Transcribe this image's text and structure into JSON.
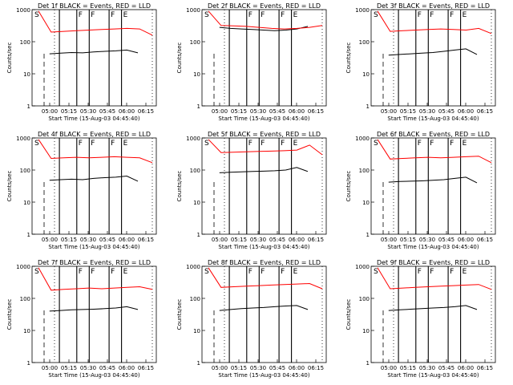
{
  "colors": {
    "events": "#000000",
    "lld": "#ff0000",
    "axes": "#000000"
  },
  "chart_data": [
    {
      "type": "line",
      "title": "Det 1f BLACK = Events, RED = LLD",
      "xlabel": "Start Time (15-Aug-03 04:45:40)",
      "ylabel": "Counts/sec",
      "x_ticks": [
        "05:00",
        "05:15",
        "05:30",
        "05:45",
        "06:00",
        "06:15"
      ],
      "y_ticks": [
        "1",
        "10",
        "100",
        "1000"
      ],
      "y_scale": "log",
      "ylim": [
        1,
        1000
      ],
      "flags": [
        "S",
        "F",
        "F",
        "F",
        "E"
      ],
      "series": [
        {
          "name": "BLACK = Events",
          "values": [
            40,
            42,
            44,
            46,
            45,
            48,
            50,
            52,
            55,
            45
          ]
        },
        {
          "name": "RED = LLD",
          "values": [
            900,
            200,
            210,
            220,
            230,
            240,
            250,
            260,
            250,
            160
          ]
        }
      ]
    },
    {
      "type": "line",
      "title": "Det 2f BLACK = Events, RED = LLD",
      "xlabel": "Start Time (15-Aug-03 04:45:40)",
      "ylabel": "Counts/sec",
      "x_ticks": [
        "05:00",
        "05:15",
        "05:30",
        "05:45",
        "06:00",
        "06:15"
      ],
      "y_ticks": [
        "1",
        "10",
        "100",
        "1000"
      ],
      "y_scale": "log",
      "ylim": [
        1,
        1000
      ],
      "flags": [
        "S",
        "F",
        "F",
        "F",
        "E"
      ],
      "series": [
        {
          "name": "BLACK = Events",
          "values": [
            290,
            280,
            260,
            250,
            240,
            230,
            220,
            230,
            250,
            300
          ]
        },
        {
          "name": "RED = LLD",
          "values": [
            900,
            320,
            310,
            300,
            280,
            260,
            250,
            260,
            280,
            320
          ]
        }
      ]
    },
    {
      "type": "line",
      "title": "Det 3f BLACK = Events, RED = LLD",
      "xlabel": "Start Time (15-Aug-03 04:45:40)",
      "ylabel": "Counts/sec",
      "x_ticks": [
        "05:00",
        "05:15",
        "05:30",
        "05:45",
        "06:00",
        "06:15"
      ],
      "y_ticks": [
        "1",
        "10",
        "100",
        "1000"
      ],
      "y_scale": "log",
      "ylim": [
        1,
        1000
      ],
      "flags": [
        "S",
        "F",
        "F",
        "F",
        "E"
      ],
      "series": [
        {
          "name": "BLACK = Events",
          "values": [
            35,
            38,
            40,
            42,
            44,
            46,
            50,
            55,
            60,
            40
          ]
        },
        {
          "name": "RED = LLD",
          "values": [
            900,
            210,
            220,
            230,
            240,
            250,
            240,
            230,
            260,
            180
          ]
        }
      ]
    },
    {
      "type": "line",
      "title": "Det 4f BLACK = Events, RED = LLD",
      "xlabel": "Start Time (15-Aug-03 04:45:40)",
      "ylabel": "Counts/sec",
      "x_ticks": [
        "05:00",
        "05:15",
        "05:30",
        "05:45",
        "06:00",
        "06:15"
      ],
      "y_ticks": [
        "1",
        "10",
        "100",
        "1000"
      ],
      "y_scale": "log",
      "ylim": [
        1,
        1000
      ],
      "flags": [
        "S",
        "F",
        "F",
        "F",
        "E"
      ],
      "series": [
        {
          "name": "BLACK = Events",
          "values": [
            45,
            48,
            50,
            52,
            50,
            55,
            58,
            60,
            65,
            45
          ]
        },
        {
          "name": "RED = LLD",
          "values": [
            900,
            230,
            240,
            250,
            240,
            250,
            260,
            250,
            240,
            170
          ]
        }
      ]
    },
    {
      "type": "line",
      "title": "Det 5f BLACK = Events, RED = LLD",
      "xlabel": "Start Time (15-Aug-03 04:45:40)",
      "ylabel": "Counts/sec",
      "x_ticks": [
        "05:00",
        "05:15",
        "05:30",
        "05:45",
        "06:00",
        "06:15"
      ],
      "y_ticks": [
        "1",
        "10",
        "100",
        "1000"
      ],
      "y_scale": "log",
      "ylim": [
        1,
        1000
      ],
      "flags": [
        "S",
        "F",
        "F",
        "F",
        "E"
      ],
      "series": [
        {
          "name": "BLACK = Events",
          "values": [
            80,
            82,
            85,
            88,
            90,
            92,
            95,
            100,
            120,
            90
          ]
        },
        {
          "name": "RED = LLD",
          "values": [
            900,
            350,
            360,
            370,
            380,
            390,
            400,
            420,
            600,
            300
          ]
        }
      ]
    },
    {
      "type": "line",
      "title": "Det 6f BLACK = Events, RED = LLD",
      "xlabel": "Start Time (15-Aug-03 04:45:40)",
      "ylabel": "Counts/sec",
      "x_ticks": [
        "05:00",
        "05:15",
        "05:30",
        "05:45",
        "06:00",
        "06:15"
      ],
      "y_ticks": [
        "1",
        "10",
        "100",
        "1000"
      ],
      "y_scale": "log",
      "ylim": [
        1,
        1000
      ],
      "flags": [
        "S",
        "F",
        "F",
        "F",
        "E"
      ],
      "series": [
        {
          "name": "BLACK = Events",
          "values": [
            40,
            42,
            44,
            45,
            46,
            48,
            50,
            55,
            60,
            40
          ]
        },
        {
          "name": "RED = LLD",
          "values": [
            900,
            220,
            230,
            240,
            250,
            240,
            250,
            260,
            270,
            170
          ]
        }
      ]
    },
    {
      "type": "line",
      "title": "Det 7f BLACK = Events, RED = LLD",
      "xlabel": "Start Time (15-Aug-03 04:45:40)",
      "ylabel": "Counts/sec",
      "x_ticks": [
        "05:00",
        "05:15",
        "05:30",
        "05:45",
        "06:00",
        "06:15"
      ],
      "y_ticks": [
        "1",
        "10",
        "100",
        "1000"
      ],
      "y_scale": "log",
      "ylim": [
        1,
        1000
      ],
      "flags": [
        "S",
        "F",
        "F",
        "F",
        "E"
      ],
      "series": [
        {
          "name": "BLACK = Events",
          "values": [
            38,
            40,
            42,
            44,
            45,
            46,
            48,
            50,
            55,
            45
          ]
        },
        {
          "name": "RED = LLD",
          "values": [
            900,
            180,
            190,
            200,
            210,
            200,
            210,
            220,
            230,
            190
          ]
        }
      ]
    },
    {
      "type": "line",
      "title": "Det 8f BLACK = Events, RED = LLD",
      "xlabel": "Start Time (15-Aug-03 04:45:40)",
      "ylabel": "Counts/sec",
      "x_ticks": [
        "05:00",
        "05:15",
        "05:30",
        "05:45",
        "06:00",
        "06:15"
      ],
      "y_ticks": [
        "1",
        "10",
        "100",
        "1000"
      ],
      "y_scale": "log",
      "ylim": [
        1,
        1000
      ],
      "flags": [
        "S",
        "F",
        "F",
        "F",
        "E"
      ],
      "series": [
        {
          "name": "BLACK = Events",
          "values": [
            40,
            42,
            45,
            48,
            50,
            52,
            55,
            58,
            60,
            45
          ]
        },
        {
          "name": "RED = LLD",
          "values": [
            900,
            220,
            230,
            240,
            250,
            260,
            270,
            280,
            290,
            200
          ]
        }
      ]
    },
    {
      "type": "line",
      "title": "Det 9f BLACK = Events, RED = LLD",
      "xlabel": "Start Time (15-Aug-03 04:45:40)",
      "ylabel": "Counts/sec",
      "x_ticks": [
        "05:00",
        "05:15",
        "05:30",
        "05:45",
        "06:00",
        "06:15"
      ],
      "y_ticks": [
        "1",
        "10",
        "100",
        "1000"
      ],
      "y_scale": "log",
      "ylim": [
        1,
        1000
      ],
      "flags": [
        "S",
        "F",
        "F",
        "F",
        "E"
      ],
      "series": [
        {
          "name": "BLACK = Events",
          "values": [
            40,
            42,
            44,
            46,
            48,
            50,
            52,
            55,
            60,
            45
          ]
        },
        {
          "name": "RED = LLD",
          "values": [
            900,
            200,
            210,
            220,
            230,
            240,
            250,
            260,
            270,
            190
          ]
        }
      ]
    }
  ]
}
